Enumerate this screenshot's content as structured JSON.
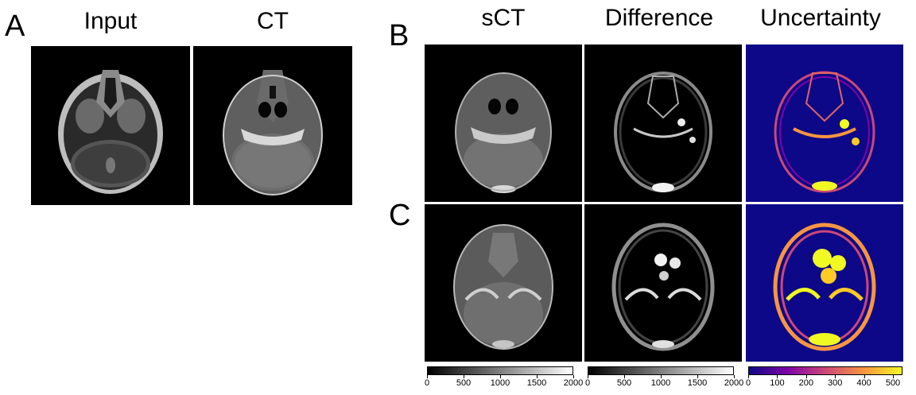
{
  "panels": {
    "A": {
      "letter": "A",
      "titles": [
        "Input",
        "CT"
      ]
    },
    "B": {
      "letter": "B",
      "titles": [
        "sCT",
        "Difference",
        "Uncertainty"
      ]
    },
    "C": {
      "letter": "C"
    }
  },
  "colorbars": [
    {
      "name": "sct-colorbar",
      "colormap": "gray",
      "ticks": [
        "0",
        "500",
        "1000",
        "1500",
        "2000"
      ]
    },
    {
      "name": "difference-colorbar",
      "colormap": "gray",
      "ticks": [
        "0",
        "500",
        "1000",
        "1500",
        "2000"
      ]
    },
    {
      "name": "uncertainty-colorbar",
      "colormap": "plasma",
      "ticks": [
        "0",
        "100",
        "200",
        "300",
        "400",
        "500"
      ]
    }
  ],
  "colors": {
    "background": "#ffffff",
    "uncertainty_background": "#0d0887",
    "plasma_mid": "#cc4778",
    "plasma_high": "#f0f921"
  }
}
